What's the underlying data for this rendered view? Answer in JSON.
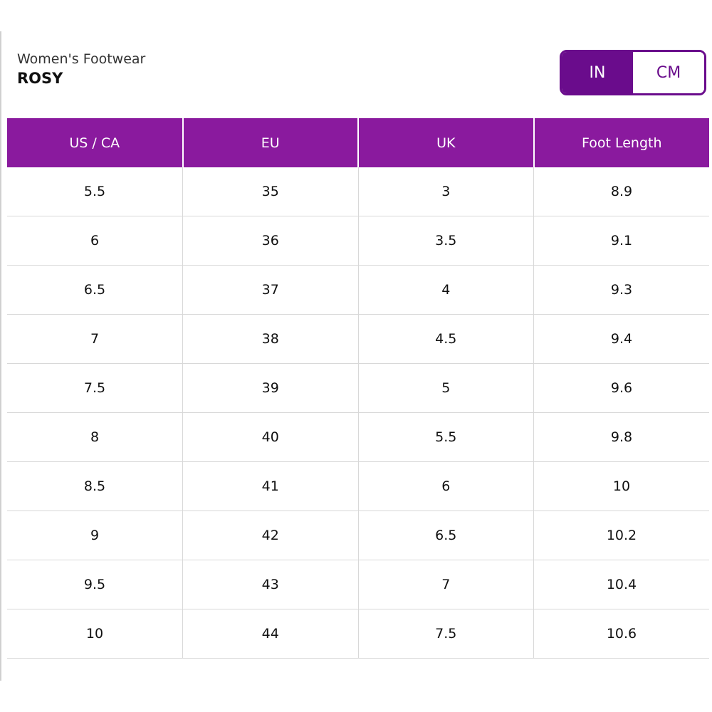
{
  "header": {
    "subtitle": "Women's Footwear",
    "title": "ROSY"
  },
  "toggle": {
    "options": [
      "IN",
      "CM"
    ]
  },
  "table": {
    "columns": [
      "US / CA",
      "EU",
      "UK",
      "Foot Length"
    ],
    "rows": [
      [
        "5.5",
        "35",
        "3",
        "8.9"
      ],
      [
        "6",
        "36",
        "3.5",
        "9.1"
      ],
      [
        "6.5",
        "37",
        "4",
        "9.3"
      ],
      [
        "7",
        "38",
        "4.5",
        "9.4"
      ],
      [
        "7.5",
        "39",
        "5",
        "9.6"
      ],
      [
        "8",
        "40",
        "5.5",
        "9.8"
      ],
      [
        "8.5",
        "41",
        "6",
        "10"
      ],
      [
        "9",
        "42",
        "6.5",
        "10.2"
      ],
      [
        "9.5",
        "43",
        "7",
        "10.4"
      ],
      [
        "10",
        "44",
        "7.5",
        "10.6"
      ]
    ]
  }
}
